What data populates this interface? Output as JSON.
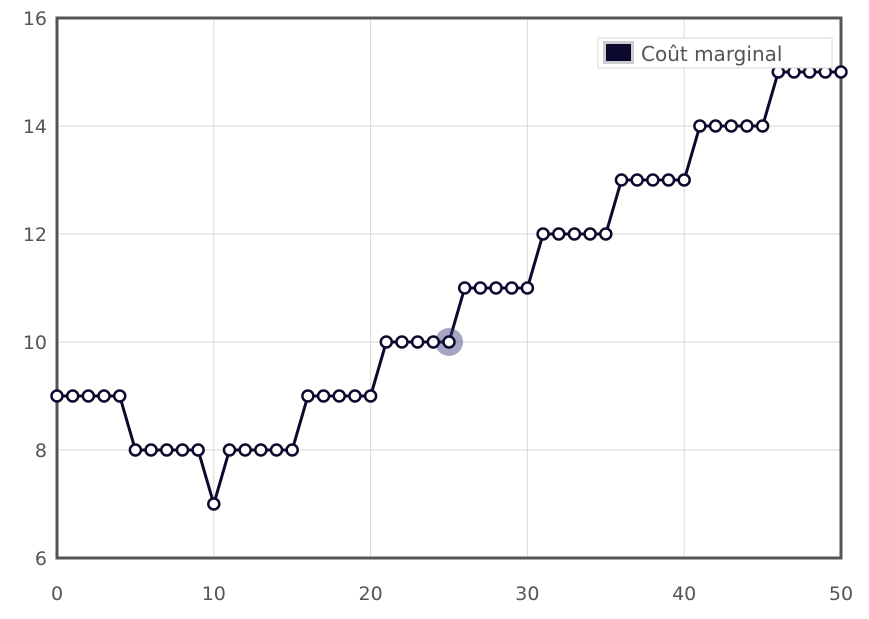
{
  "chart_data": {
    "type": "line",
    "x": [
      0,
      1,
      2,
      3,
      4,
      5,
      6,
      7,
      8,
      9,
      10,
      11,
      12,
      13,
      14,
      15,
      16,
      17,
      18,
      19,
      20,
      21,
      22,
      23,
      24,
      25,
      26,
      27,
      28,
      29,
      30,
      31,
      32,
      33,
      34,
      35,
      36,
      37,
      38,
      39,
      40,
      41,
      42,
      43,
      44,
      45,
      46,
      47,
      48,
      49,
      50
    ],
    "series": [
      {
        "name": "Coût marginal",
        "color": "#0b0a2e",
        "values": [
          9,
          9,
          9,
          9,
          9,
          8,
          8,
          8,
          8,
          8,
          7,
          8,
          8,
          8,
          8,
          8,
          9,
          9,
          9,
          9,
          9,
          10,
          10,
          10,
          10,
          10,
          11,
          11,
          11,
          11,
          11,
          12,
          12,
          12,
          12,
          12,
          13,
          13,
          13,
          13,
          13,
          14,
          14,
          14,
          14,
          14,
          15,
          15,
          15,
          15,
          15
        ]
      }
    ],
    "highlight_x": 25,
    "xlim": [
      0,
      50
    ],
    "ylim": [
      6,
      16
    ],
    "x_ticks": [
      "0",
      "10",
      "20",
      "30",
      "40",
      "50"
    ],
    "y_ticks": [
      "6",
      "8",
      "10",
      "12",
      "14",
      "16"
    ],
    "grid": true,
    "legend_position": "top-right"
  }
}
